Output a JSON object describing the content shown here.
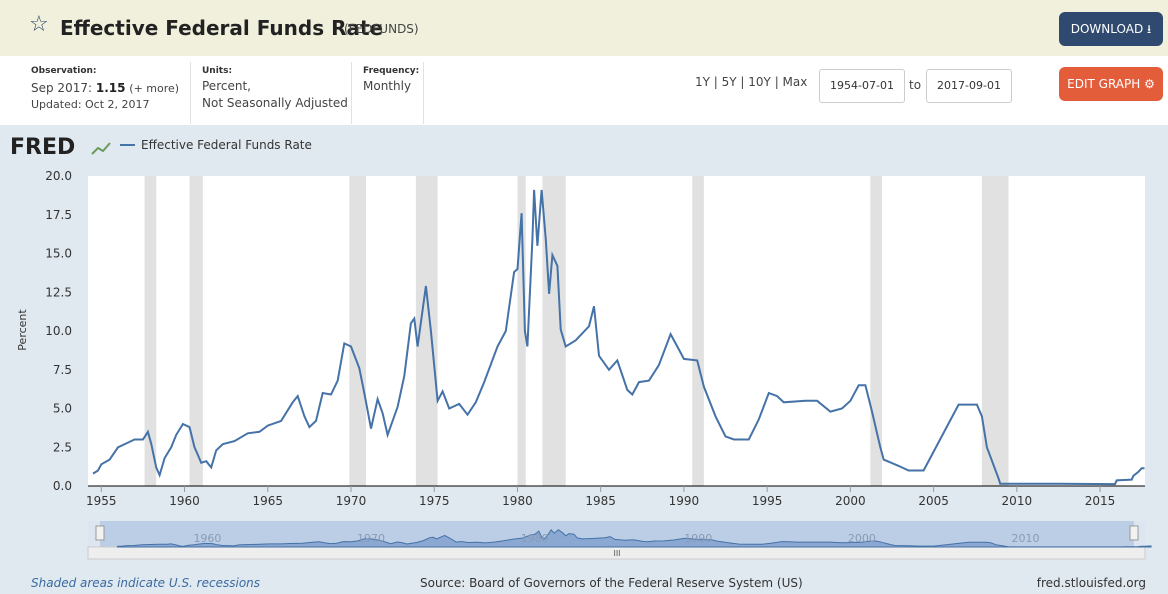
{
  "header": {
    "title": "Effective Federal Funds Rate",
    "series_id": "(FEDFUNDS)",
    "download": "DOWNLOAD"
  },
  "info": {
    "observation_label": "Observation:",
    "observation_date": "Sep 2017:",
    "observation_value": 1.15,
    "more": "(+ more)",
    "updated": "Updated: Oct 2, 2017",
    "units_label": "Units:",
    "units_1": "Percent,",
    "units_2": "Not Seasonally Adjusted",
    "frequency_label": "Frequency:",
    "frequency": "Monthly",
    "ranges": "1Y | 5Y | 10Y | Max",
    "start": "1954-07-01",
    "to": "to",
    "end": "2017-09-01",
    "edit": "EDIT GRAPH"
  },
  "chart_data": {
    "type": "line",
    "logo": "FRED",
    "ylabel": "Percent",
    "xlim": [
      1954.2,
      2017.7
    ],
    "xticks": [
      1955,
      1960,
      1965,
      1970,
      1975,
      1980,
      1985,
      1990,
      1995,
      2000,
      2005,
      2010,
      2015
    ],
    "ylim": [
      0,
      20
    ],
    "yticks": [
      {
        "value": 0,
        "label": "0.0"
      },
      2.5,
      {
        "value": 5,
        "label": "5.0"
      },
      7.5,
      {
        "value": 10,
        "label": "10.0"
      },
      12.5,
      {
        "value": 15,
        "label": "15.0"
      },
      17.5,
      {
        "value": 20,
        "label": "20.0"
      }
    ],
    "recessions": [
      [
        1957.6,
        1958.3
      ],
      [
        1960.3,
        1961.1
      ],
      [
        1969.9,
        1970.9
      ],
      [
        1973.9,
        1975.2
      ],
      [
        1980.0,
        1980.5
      ],
      [
        1981.5,
        1982.9
      ],
      [
        1990.5,
        1991.2
      ],
      [
        2001.2,
        2001.9
      ],
      [
        2007.9,
        2009.5
      ]
    ],
    "x": [
      1954.5,
      1954.8,
      1955.0,
      1955.5,
      1956.0,
      1956.5,
      1957.0,
      1957.5,
      1957.8,
      1958.0,
      1958.3,
      1958.5,
      1958.8,
      1959.2,
      1959.5,
      1959.9,
      1960.3,
      1960.6,
      1960.8,
      1961.0,
      1961.3,
      1961.6,
      1961.9,
      1962.3,
      1963.0,
      1963.8,
      1964.5,
      1965.0,
      1965.8,
      1966.5,
      1966.8,
      1967.2,
      1967.5,
      1967.9,
      1968.3,
      1968.8,
      1969.2,
      1969.6,
      1970.0,
      1970.5,
      1970.8,
      1971.2,
      1971.6,
      1971.9,
      1972.2,
      1972.8,
      1973.2,
      1973.6,
      1973.8,
      1974.0,
      1974.5,
      1974.8,
      1975.2,
      1975.5,
      1975.9,
      1976.5,
      1977.0,
      1977.5,
      1978.0,
      1978.8,
      1979.3,
      1979.8,
      1980.0,
      1980.25,
      1980.45,
      1980.6,
      1980.9,
      1981.0,
      1981.2,
      1981.45,
      1981.7,
      1981.9,
      1982.1,
      1982.4,
      1982.6,
      1982.9,
      1983.5,
      1984.3,
      1984.6,
      1984.9,
      1985.5,
      1986.0,
      1986.6,
      1986.9,
      1987.3,
      1987.9,
      1988.5,
      1989.2,
      1989.6,
      1990.0,
      1990.8,
      1991.2,
      1991.9,
      1992.5,
      1993.0,
      1993.9,
      1994.5,
      1995.1,
      1995.6,
      1996.0,
      1997.3,
      1998.0,
      1998.8,
      1999.5,
      2000.0,
      2000.5,
      2000.9,
      2001.3,
      2001.8,
      2002.0,
      2002.9,
      2003.5,
      2004.4,
      2006.5,
      2007.6,
      2007.9,
      2008.2,
      2008.9,
      2009.0,
      2011.0,
      2012.5,
      2015.9,
      2016.0,
      2016.9,
      2017.0,
      2017.3,
      2017.5,
      2017.67
    ],
    "series": [
      {
        "name": "Effective Federal Funds Rate",
        "color": "#4572a7",
        "values": [
          0.8,
          1.0,
          1.4,
          1.7,
          2.5,
          2.75,
          3.0,
          3.0,
          3.5,
          2.7,
          1.2,
          0.7,
          1.8,
          2.5,
          3.3,
          4.0,
          3.8,
          2.5,
          2.0,
          1.5,
          1.6,
          1.2,
          2.3,
          2.7,
          2.9,
          3.4,
          3.5,
          3.9,
          4.2,
          5.4,
          5.8,
          4.5,
          3.8,
          4.2,
          6.0,
          5.9,
          6.8,
          9.2,
          9.0,
          7.6,
          6.0,
          3.7,
          5.6,
          4.7,
          3.3,
          5.1,
          7.1,
          10.5,
          10.8,
          9.0,
          12.9,
          10.0,
          5.5,
          6.1,
          5.0,
          5.3,
          4.6,
          5.4,
          6.7,
          9.0,
          10.0,
          13.8,
          14.0,
          17.6,
          10.0,
          9.0,
          15.9,
          19.1,
          15.5,
          19.1,
          15.9,
          12.4,
          14.9,
          14.2,
          10.1,
          9.0,
          9.4,
          10.3,
          11.6,
          8.4,
          7.5,
          8.1,
          6.2,
          5.9,
          6.7,
          6.8,
          7.8,
          9.8,
          9.0,
          8.2,
          8.1,
          6.4,
          4.5,
          3.2,
          3.0,
          3.0,
          4.3,
          6.0,
          5.8,
          5.4,
          5.5,
          5.5,
          4.8,
          5.0,
          5.5,
          6.5,
          6.5,
          4.8,
          2.5,
          1.7,
          1.3,
          1.0,
          1.0,
          5.25,
          5.25,
          4.5,
          2.5,
          0.5,
          0.15,
          0.15,
          0.15,
          0.12,
          0.36,
          0.41,
          0.65,
          0.91,
          1.15,
          1.15
        ]
      }
    ]
  },
  "navigator": {
    "xlim": [
      1952.7,
      2017.3
    ],
    "xticks": [
      1960,
      1970,
      1980,
      1990,
      2000,
      2010
    ]
  },
  "footer": {
    "note": "Shaded areas indicate U.S. recessions",
    "source": "Source: Board of Governors of the Federal Reserve System (US)",
    "site": "fred.stlouisfed.org"
  }
}
